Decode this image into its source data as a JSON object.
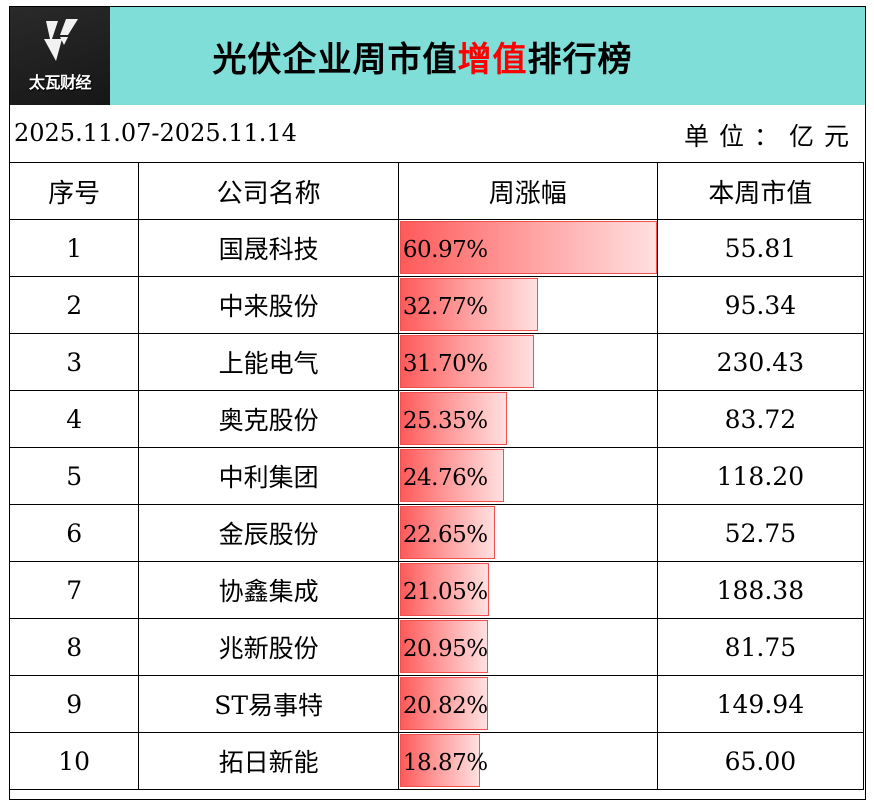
{
  "logo": {
    "icon": "lightning-v-logo-icon",
    "text": "太瓦财经"
  },
  "title": {
    "prefix": "光伏企业周市值",
    "highlight": "增值",
    "suffix": "排行榜",
    "highlight_color": "#ff0000",
    "band_color": "#7fded8"
  },
  "date_range": "2025.11.07-2025.11.14",
  "unit": "单位：亿元",
  "table": {
    "headers": [
      "序号",
      "公司名称",
      "周涨幅",
      "本周市值"
    ],
    "rows": [
      {
        "rank": "1",
        "company": "国晟科技",
        "weekly_change": "60.97%",
        "change_value": 60.97,
        "market_cap": "55.81"
      },
      {
        "rank": "2",
        "company": "中来股份",
        "weekly_change": "32.77%",
        "change_value": 32.77,
        "market_cap": "95.34"
      },
      {
        "rank": "3",
        "company": "上能电气",
        "weekly_change": "31.70%",
        "change_value": 31.7,
        "market_cap": "230.43"
      },
      {
        "rank": "4",
        "company": "奥克股份",
        "weekly_change": "25.35%",
        "change_value": 25.35,
        "market_cap": "83.72"
      },
      {
        "rank": "5",
        "company": "中利集团",
        "weekly_change": "24.76%",
        "change_value": 24.76,
        "market_cap": "118.20"
      },
      {
        "rank": "6",
        "company": "金辰股份",
        "weekly_change": "22.65%",
        "change_value": 22.65,
        "market_cap": "52.75"
      },
      {
        "rank": "7",
        "company": "协鑫集成",
        "weekly_change": "21.05%",
        "change_value": 21.05,
        "market_cap": "188.38"
      },
      {
        "rank": "8",
        "company": "兆新股份",
        "weekly_change": "20.95%",
        "change_value": 20.95,
        "market_cap": "81.75"
      },
      {
        "rank": "9",
        "company": "ST易事特",
        "weekly_change": "20.82%",
        "change_value": 20.82,
        "market_cap": "149.94"
      },
      {
        "rank": "10",
        "company": "拓日新能",
        "weekly_change": "18.87%",
        "change_value": 18.87,
        "market_cap": "65.00"
      }
    ]
  }
}
